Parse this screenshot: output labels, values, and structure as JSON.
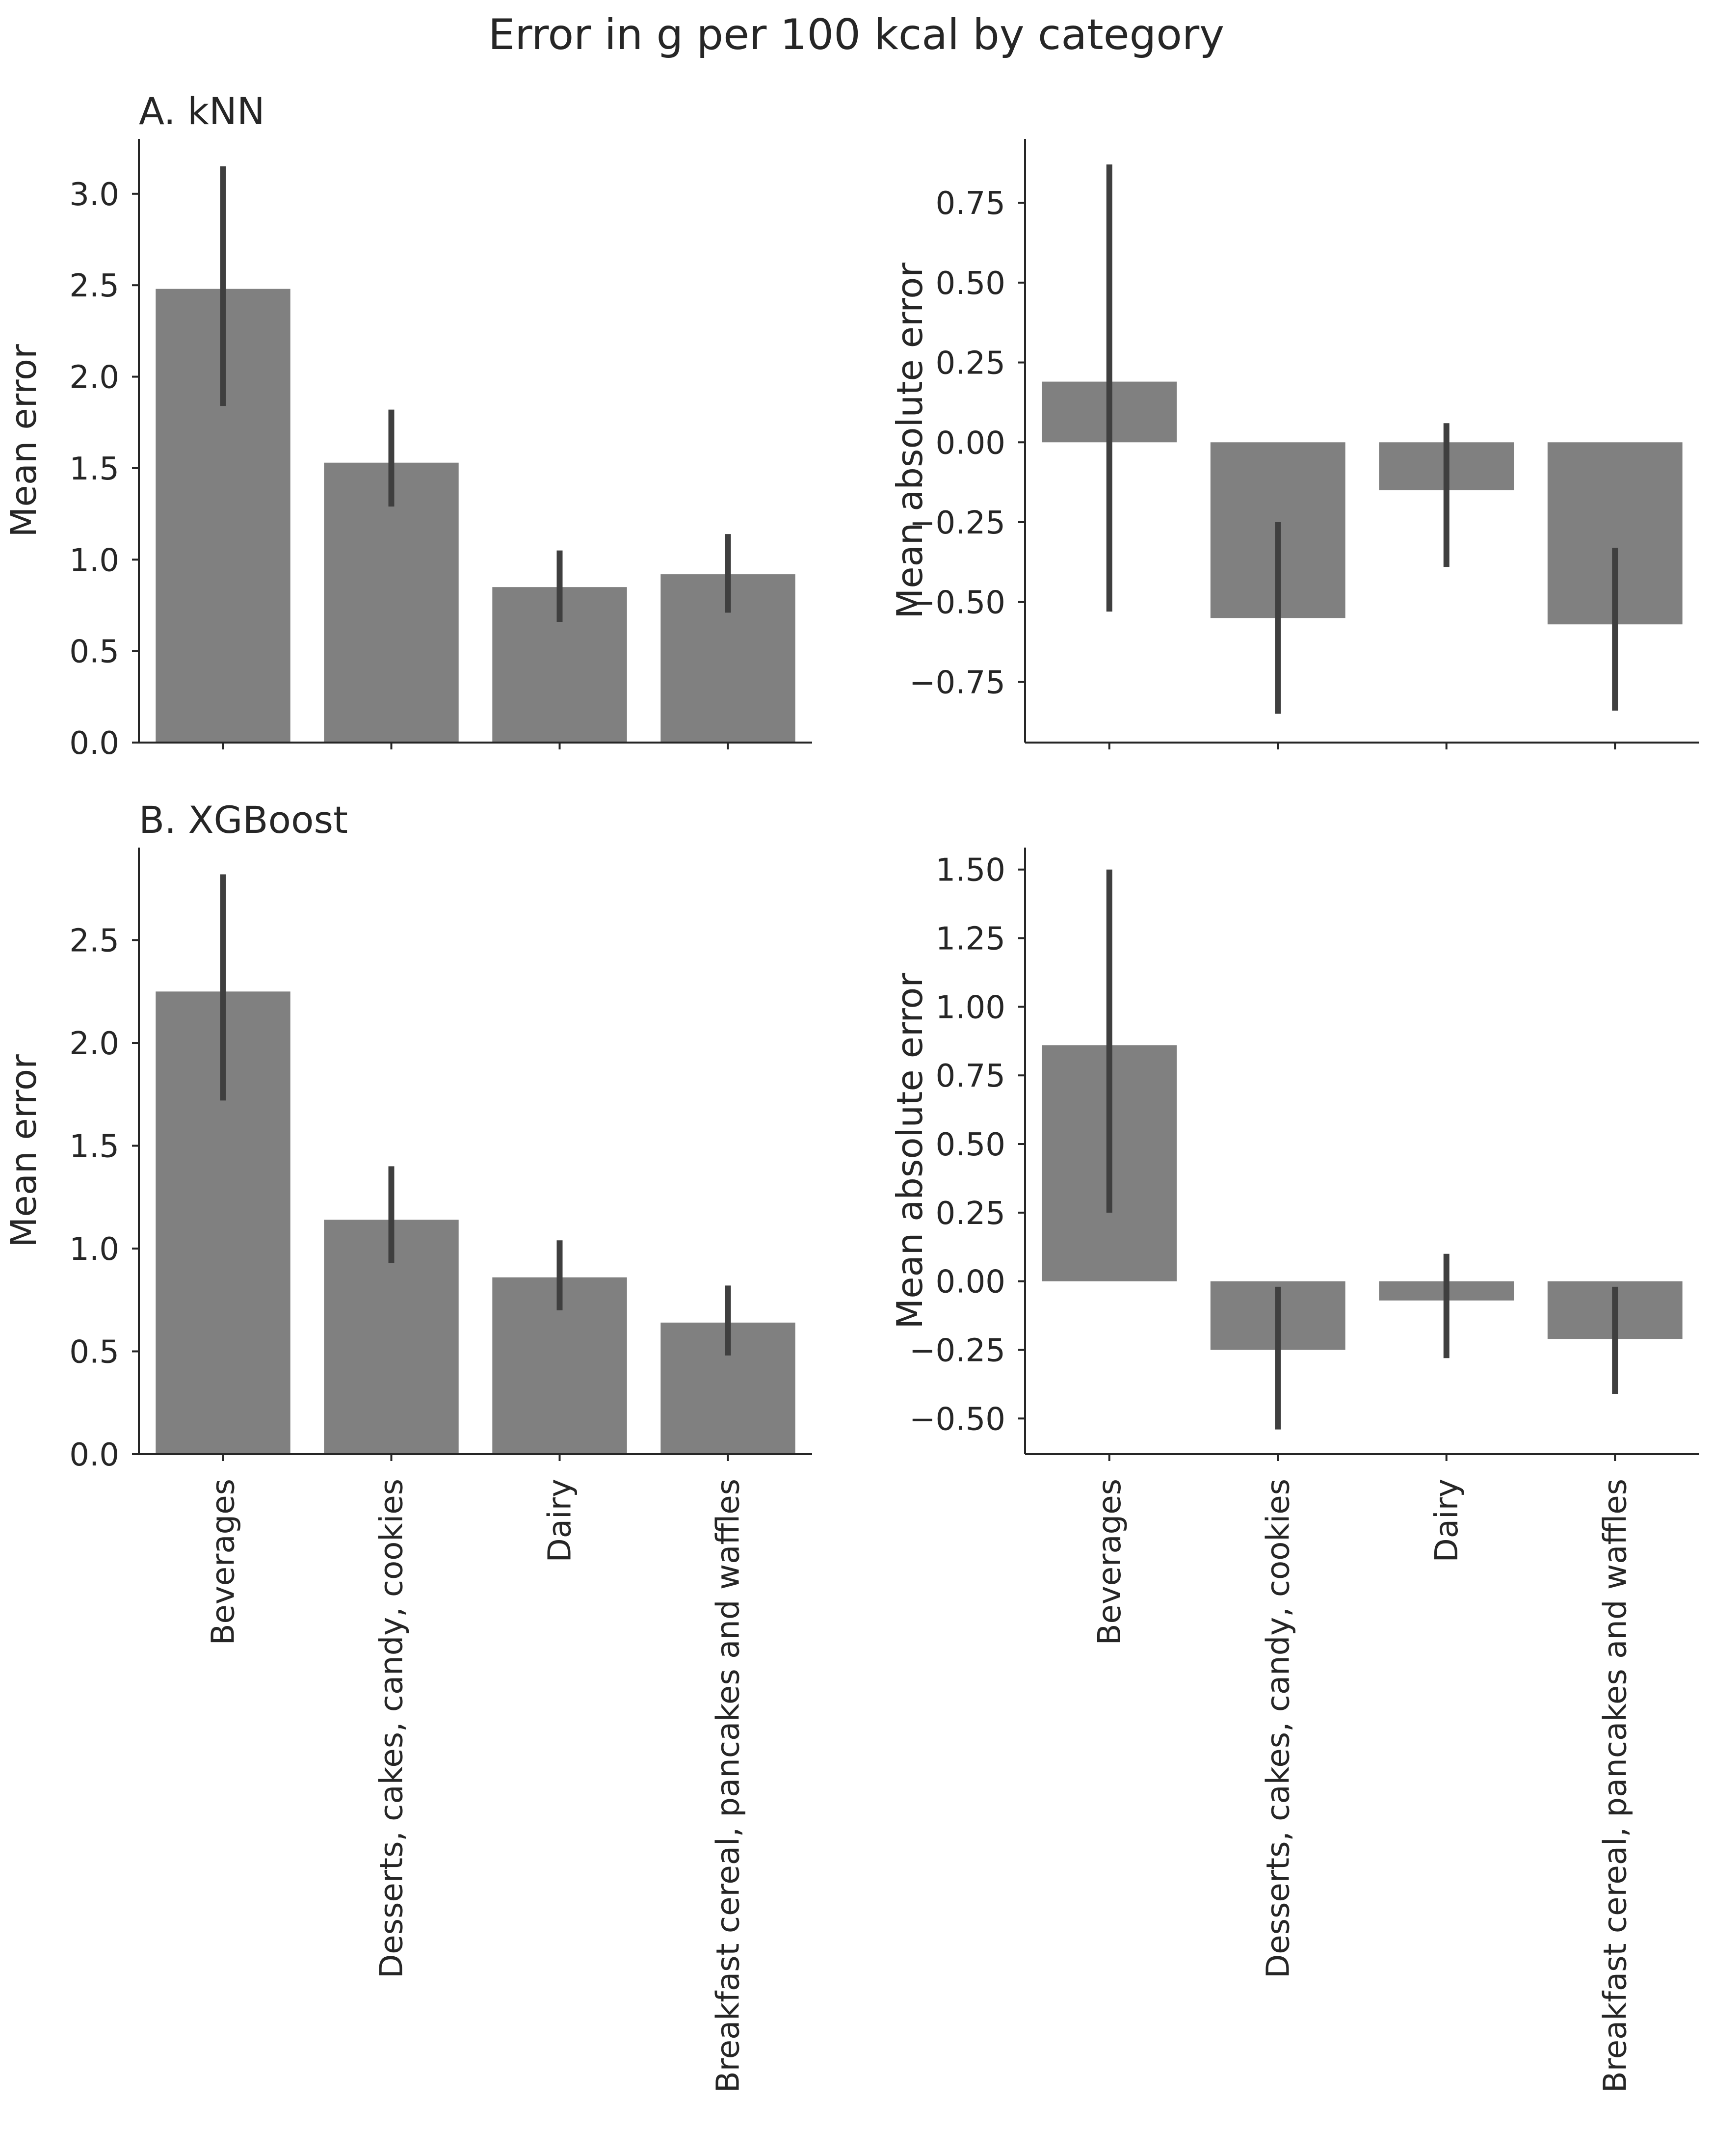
{
  "figure": {
    "title": "Error in g per 100 kcal by category"
  },
  "chart_data": [
    {
      "type": "bar",
      "panel": "A",
      "title": "A. kNN",
      "xlabel": "",
      "ylabel": "Mean error",
      "categories": [
        "Beverages",
        "Desserts, cakes, candy, cookies",
        "Dairy",
        "Breakfast cereal, pancakes and waffles"
      ],
      "values": [
        2.48,
        1.53,
        0.85,
        0.92
      ],
      "ci_low": [
        1.84,
        1.29,
        0.66,
        0.71
      ],
      "ci_high": [
        3.15,
        1.82,
        1.05,
        1.14
      ],
      "ylim": [
        0,
        3.3
      ],
      "yticks": [
        0.0,
        0.5,
        1.0,
        1.5,
        2.0,
        2.5,
        3.0
      ],
      "ytick_labels": [
        "0.0",
        "0.5",
        "1.0",
        "1.5",
        "2.0",
        "2.5",
        "3.0"
      ],
      "show_category_labels": false
    },
    {
      "type": "bar",
      "panel": "A",
      "title": "",
      "xlabel": "",
      "ylabel": "Mean absolute error",
      "categories": [
        "Beverages",
        "Desserts, cakes, candy, cookies",
        "Dairy",
        "Breakfast cereal, pancakes and waffles"
      ],
      "values": [
        0.19,
        -0.55,
        -0.15,
        -0.57
      ],
      "ci_low": [
        -0.53,
        -0.85,
        -0.39,
        -0.84
      ],
      "ci_high": [
        0.87,
        -0.25,
        0.06,
        -0.33
      ],
      "ylim": [
        -0.94,
        0.95
      ],
      "yticks": [
        -0.75,
        -0.5,
        -0.25,
        0.0,
        0.25,
        0.5,
        0.75
      ],
      "ytick_labels": [
        "−0.75",
        "−0.50",
        "−0.25",
        "0.00",
        "0.25",
        "0.50",
        "0.75"
      ],
      "show_category_labels": false
    },
    {
      "type": "bar",
      "panel": "B",
      "title": "B. XGBoost",
      "xlabel": "",
      "ylabel": "Mean error",
      "categories": [
        "Beverages",
        "Desserts, cakes, candy, cookies",
        "Dairy",
        "Breakfast cereal, pancakes and waffles"
      ],
      "values": [
        2.25,
        1.14,
        0.86,
        0.64
      ],
      "ci_low": [
        1.72,
        0.93,
        0.7,
        0.48
      ],
      "ci_high": [
        2.82,
        1.4,
        1.04,
        0.82
      ],
      "ylim": [
        0,
        2.95
      ],
      "yticks": [
        0.0,
        0.5,
        1.0,
        1.5,
        2.0,
        2.5
      ],
      "ytick_labels": [
        "0.0",
        "0.5",
        "1.0",
        "1.5",
        "2.0",
        "2.5"
      ],
      "show_category_labels": true
    },
    {
      "type": "bar",
      "panel": "B",
      "title": "",
      "xlabel": "",
      "ylabel": "Mean absolute error",
      "categories": [
        "Beverages",
        "Desserts, cakes, candy, cookies",
        "Dairy",
        "Breakfast cereal, pancakes and waffles"
      ],
      "values": [
        0.86,
        -0.25,
        -0.07,
        -0.21
      ],
      "ci_low": [
        0.25,
        -0.54,
        -0.28,
        -0.41
      ],
      "ci_high": [
        1.5,
        -0.02,
        0.1,
        -0.02
      ],
      "ylim": [
        -0.63,
        1.58
      ],
      "yticks": [
        -0.5,
        -0.25,
        0.0,
        0.25,
        0.5,
        0.75,
        1.0,
        1.25,
        1.5
      ],
      "ytick_labels": [
        "−0.50",
        "−0.25",
        "0.00",
        "0.25",
        "0.50",
        "0.75",
        "1.00",
        "1.25",
        "1.50"
      ],
      "show_category_labels": true
    }
  ]
}
